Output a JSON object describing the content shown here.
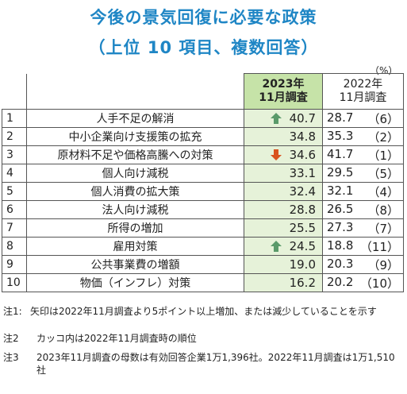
{
  "title": {
    "line1": "今後の景気回復に必要な政策",
    "line2": "（上位 10 項目、複数回答）"
  },
  "unit": "（%）",
  "headers": {
    "col2023": "2023年\n11月調査",
    "col2022": "2022年\n11月調査"
  },
  "rows": [
    {
      "rank": "1",
      "item": "人手不足の解消",
      "v2023": "40.7",
      "v2022": "28.7",
      "rank2022": "（6）",
      "trend": "up"
    },
    {
      "rank": "2",
      "item": "中小企業向け支援策の拡充",
      "v2023": "34.8",
      "v2022": "35.3",
      "rank2022": "（2）",
      "trend": ""
    },
    {
      "rank": "3",
      "item": "原材料不足や価格高騰への対策",
      "v2023": "34.6",
      "v2022": "41.7",
      "rank2022": "（1）",
      "trend": "down"
    },
    {
      "rank": "4",
      "item": "個人向け減税",
      "v2023": "33.1",
      "v2022": "29.5",
      "rank2022": "（5）",
      "trend": ""
    },
    {
      "rank": "5",
      "item": "個人消費の拡大策",
      "v2023": "32.4",
      "v2022": "32.1",
      "rank2022": "（4）",
      "trend": ""
    },
    {
      "rank": "6",
      "item": "法人向け減税",
      "v2023": "28.8",
      "v2022": "26.5",
      "rank2022": "（8）",
      "trend": ""
    },
    {
      "rank": "7",
      "item": "所得の増加",
      "v2023": "25.5",
      "v2022": "27.3",
      "rank2022": "（7）",
      "trend": ""
    },
    {
      "rank": "8",
      "item": "雇用対策",
      "v2023": "24.5",
      "v2022": "18.8",
      "rank2022": "（11）",
      "trend": "up"
    },
    {
      "rank": "9",
      "item": "公共事業費の増額",
      "v2023": "19.0",
      "v2022": "20.3",
      "rank2022": "（9）",
      "trend": ""
    },
    {
      "rank": "10",
      "item": "物価（インフレ）対策",
      "v2023": "16.2",
      "v2022": "20.2",
      "rank2022": "（10）",
      "trend": ""
    }
  ],
  "notes": {
    "note1_label": "注1:",
    "note1_text": "矢印は2022年11月調査より5ポイント以上増加、または減少していることを示す",
    "note2_label": "注2",
    "note2_text": "カッコ内は2022年11月調査時の順位",
    "note3_label": "注3",
    "note3_text": "2023年11月調査の母数は有効回答企業1万1,396社。2022年11月調査は1万1,510社"
  },
  "colors": {
    "title": "#1f86c5",
    "header2023_bg": "#c6e3a8",
    "col2023_bg": "#e6f2d9",
    "arrow_up": "#5a9a6a",
    "arrow_down": "#d9531e"
  },
  "icons": {
    "up": "arrow-up-icon",
    "down": "arrow-down-icon"
  }
}
